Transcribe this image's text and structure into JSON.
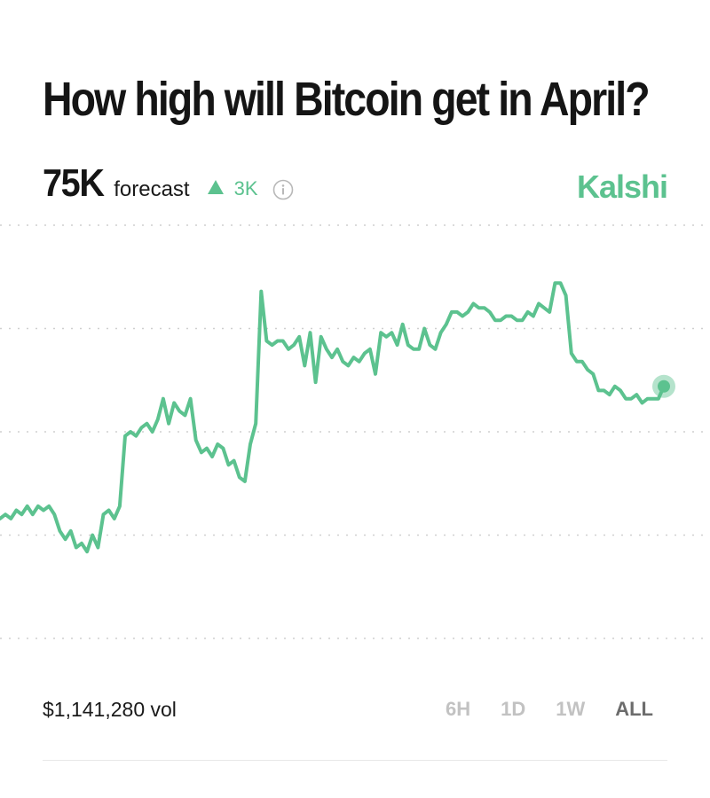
{
  "header": {
    "title": "How high will Bitcoin get in April?",
    "forecast_value": "75K",
    "forecast_label": "forecast",
    "change_value": "3K",
    "brand": "Kalshi"
  },
  "colors": {
    "accent": "#5cc28f",
    "gridline": "#cfcfcf",
    "text": "#151515",
    "range_inactive": "#c2c2c2",
    "range_active": "#6c6c6c"
  },
  "icons": {
    "change": "triangle-up-icon",
    "info": "info-icon"
  },
  "footer": {
    "volume": "$1,141,280 vol",
    "ranges": [
      {
        "label": "6H",
        "active": false
      },
      {
        "label": "1D",
        "active": false
      },
      {
        "label": "1W",
        "active": false
      },
      {
        "label": "ALL",
        "active": true
      }
    ]
  },
  "chart_data": {
    "type": "line",
    "title": "",
    "xlabel": "",
    "ylabel": "",
    "grid": true,
    "gridline_count": 5,
    "ylim": [
      0,
      100
    ],
    "series": [
      {
        "color": "#5cc28f",
        "values": [
          29,
          30,
          29,
          31,
          30,
          32,
          30,
          32,
          31,
          32,
          30,
          26,
          24,
          26,
          22,
          23,
          21,
          25,
          22,
          30,
          31,
          29,
          32,
          49,
          50,
          49,
          51,
          52,
          50,
          53,
          58,
          52,
          57,
          55,
          54,
          58,
          48,
          45,
          46,
          44,
          47,
          46,
          42,
          43,
          39,
          38,
          47,
          52,
          84,
          72,
          71,
          72,
          72,
          70,
          71,
          73,
          66,
          74,
          62,
          73,
          70,
          68,
          70,
          67,
          66,
          68,
          67,
          69,
          70,
          64,
          74,
          73,
          74,
          71,
          76,
          71,
          70,
          70,
          75,
          71,
          70,
          74,
          76,
          79,
          79,
          78,
          79,
          81,
          80,
          80,
          79,
          77,
          77,
          78,
          78,
          77,
          77,
          79,
          78,
          81,
          80,
          79,
          86,
          86,
          83,
          69,
          67,
          67,
          65,
          64,
          60,
          60,
          59,
          61,
          60,
          58,
          58,
          59,
          57,
          58,
          58,
          58,
          61
        ]
      }
    ]
  }
}
